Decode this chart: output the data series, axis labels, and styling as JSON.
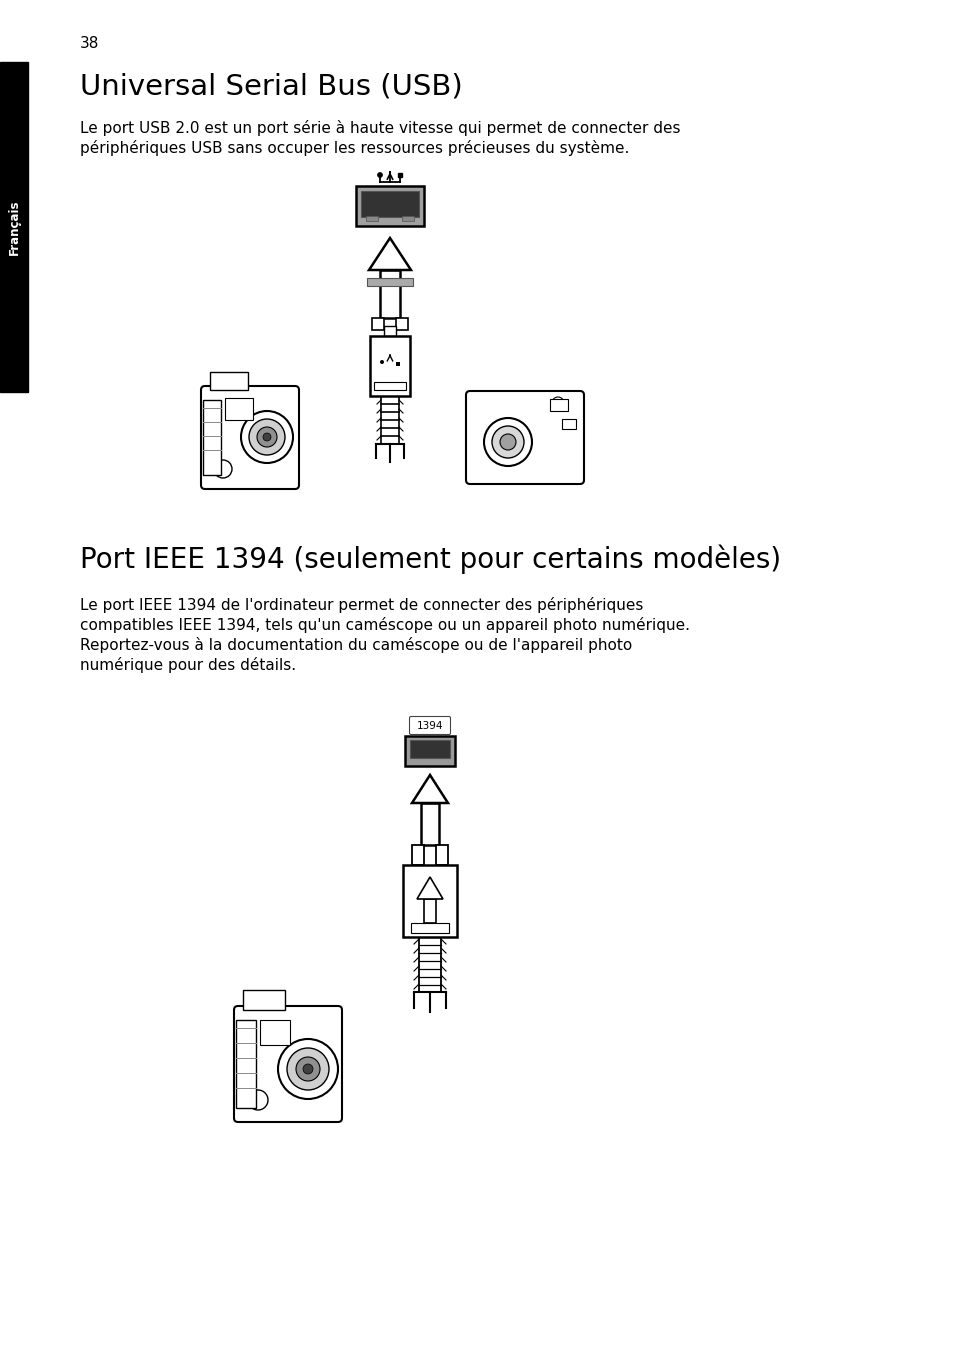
{
  "page_number": "38",
  "background_color": "#ffffff",
  "sidebar_color": "#000000",
  "sidebar_text": "Français",
  "sidebar_text_color": "#ffffff",
  "section1_title": "Universal Serial Bus (USB)",
  "section1_body_line1": "Le port USB 2.0 est un port série à haute vitesse qui permet de connecter des",
  "section1_body_line2": "périphériques USB sans occuper les ressources précieuses du système.",
  "section2_title": "Port IEEE 1394 (seulement pour certains modèles)",
  "section2_body_line1": "Le port IEEE 1394 de l'ordinateur permet de connecter des périphériques",
  "section2_body_line2": "compatibles IEEE 1394, tels qu'un caméscope ou un appareil photo numérique.",
  "section2_body_line3": "Reportez-vous à la documentation du caméscope ou de l'appareil photo",
  "section2_body_line4": "numérique pour des détails.",
  "fig_width": 9.54,
  "fig_height": 13.69,
  "dpi": 100
}
